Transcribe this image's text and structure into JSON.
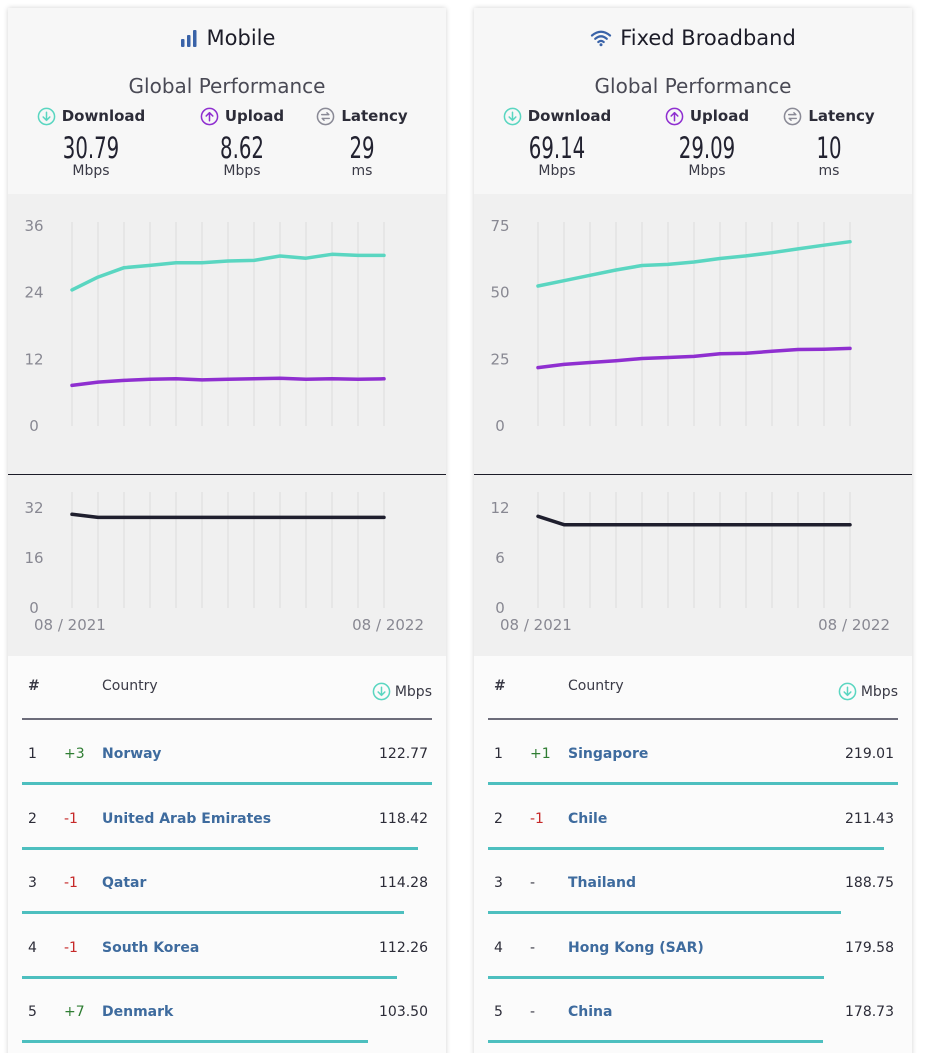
{
  "panels": [
    {
      "id": "mobile",
      "title": "Mobile",
      "icon": "signal-bars-icon",
      "subtitle": "Global Performance",
      "metrics": {
        "download": {
          "label": "Download",
          "value": "30.79",
          "unit": "Mbps"
        },
        "upload": {
          "label": "Upload",
          "value": "8.62",
          "unit": "Mbps"
        },
        "latency": {
          "label": "Latency",
          "value": "29",
          "unit": "ms"
        }
      },
      "speed_chart": {
        "yticks": [
          "36",
          "24",
          "12",
          "0"
        ],
        "ymax": 36
      },
      "latency_chart": {
        "yticks": [
          "32",
          "16",
          "0"
        ],
        "ymax": 32
      },
      "x_start": "08 / 2021",
      "x_end": "08 / 2022",
      "table": {
        "col_rank": "#",
        "col_country": "Country",
        "col_value": "Mbps",
        "rows": [
          {
            "rank": "1",
            "change": "+3",
            "country": "Norway",
            "value": "122.77"
          },
          {
            "rank": "2",
            "change": "-1",
            "country": "United Arab Emirates",
            "value": "118.42"
          },
          {
            "rank": "3",
            "change": "-1",
            "country": "Qatar",
            "value": "114.28"
          },
          {
            "rank": "4",
            "change": "-1",
            "country": "South Korea",
            "value": "112.26"
          },
          {
            "rank": "5",
            "change": "+7",
            "country": "Denmark",
            "value": "103.50"
          }
        ]
      }
    },
    {
      "id": "fixed",
      "title": "Fixed Broadband",
      "icon": "wifi-icon",
      "subtitle": "Global Performance",
      "metrics": {
        "download": {
          "label": "Download",
          "value": "69.14",
          "unit": "Mbps"
        },
        "upload": {
          "label": "Upload",
          "value": "29.09",
          "unit": "Mbps"
        },
        "latency": {
          "label": "Latency",
          "value": "10",
          "unit": "ms"
        }
      },
      "speed_chart": {
        "yticks": [
          "75",
          "50",
          "25",
          "0"
        ],
        "ymax": 75
      },
      "latency_chart": {
        "yticks": [
          "12",
          "6",
          "0"
        ],
        "ymax": 12
      },
      "x_start": "08 / 2021",
      "x_end": "08 / 2022",
      "table": {
        "col_rank": "#",
        "col_country": "Country",
        "col_value": "Mbps",
        "rows": [
          {
            "rank": "1",
            "change": "+1",
            "country": "Singapore",
            "value": "219.01"
          },
          {
            "rank": "2",
            "change": "-1",
            "country": "Chile",
            "value": "211.43"
          },
          {
            "rank": "3",
            "change": "-",
            "country": "Thailand",
            "value": "188.75"
          },
          {
            "rank": "4",
            "change": "-",
            "country": "Hong Kong (SAR)",
            "value": "179.58"
          },
          {
            "rank": "5",
            "change": "-",
            "country": "China",
            "value": "178.73"
          }
        ]
      }
    }
  ],
  "chart_data": [
    {
      "type": "line",
      "panel": "Mobile",
      "x_labels": [
        "08 / 2021",
        "08 / 2022"
      ],
      "points": 13,
      "ylim": [
        0,
        36
      ],
      "yticks": [
        0,
        12,
        24,
        36
      ],
      "series": [
        {
          "metric": "download",
          "values": [
            24.5,
            26.8,
            28.5,
            28.9,
            29.4,
            29.4,
            29.7,
            29.8,
            30.6,
            30.2,
            30.9,
            30.7,
            30.7
          ]
        },
        {
          "metric": "upload",
          "values": [
            7.3,
            7.9,
            8.2,
            8.4,
            8.5,
            8.3,
            8.4,
            8.5,
            8.6,
            8.4,
            8.5,
            8.4,
            8.5
          ]
        }
      ]
    },
    {
      "type": "line",
      "panel": "Mobile",
      "x_labels": [
        "08 / 2021",
        "08 / 2022"
      ],
      "points": 13,
      "ylim": [
        0,
        32
      ],
      "yticks": [
        0,
        16,
        32
      ],
      "series": [
        {
          "metric": "latency",
          "values": [
            30,
            29,
            29,
            29,
            29,
            29,
            29,
            29,
            29,
            29,
            29,
            29,
            29
          ]
        }
      ]
    },
    {
      "type": "line",
      "panel": "Fixed Broadband",
      "x_labels": [
        "08 / 2021",
        "08 / 2022"
      ],
      "points": 13,
      "ylim": [
        0,
        75
      ],
      "yticks": [
        0,
        25,
        50,
        75
      ],
      "series": [
        {
          "metric": "download",
          "values": [
            52.5,
            54.5,
            56.5,
            58.5,
            60.2,
            60.6,
            61.5,
            62.8,
            63.8,
            65.0,
            66.4,
            67.8,
            69.1
          ]
        },
        {
          "metric": "upload",
          "values": [
            21.9,
            23.1,
            23.8,
            24.5,
            25.3,
            25.7,
            26.1,
            27.1,
            27.3,
            28.0,
            28.7,
            28.8,
            29.1
          ]
        }
      ]
    },
    {
      "type": "line",
      "panel": "Fixed Broadband",
      "x_labels": [
        "08 / 2021",
        "08 / 2022"
      ],
      "points": 13,
      "ylim": [
        0,
        12
      ],
      "yticks": [
        0,
        6,
        12
      ],
      "series": [
        {
          "metric": "latency",
          "values": [
            11,
            10,
            10,
            10,
            10,
            10,
            10,
            10,
            10,
            10,
            10,
            10,
            10
          ]
        }
      ]
    }
  ],
  "colors": {
    "download": "#5ad6c1",
    "upload": "#8f2fd0",
    "latency": "#1f1f2e",
    "row_bar": "#4dbfbf",
    "country_link": "#3e6b9e",
    "positive": "#2e7d32",
    "negative": "#c62828"
  }
}
